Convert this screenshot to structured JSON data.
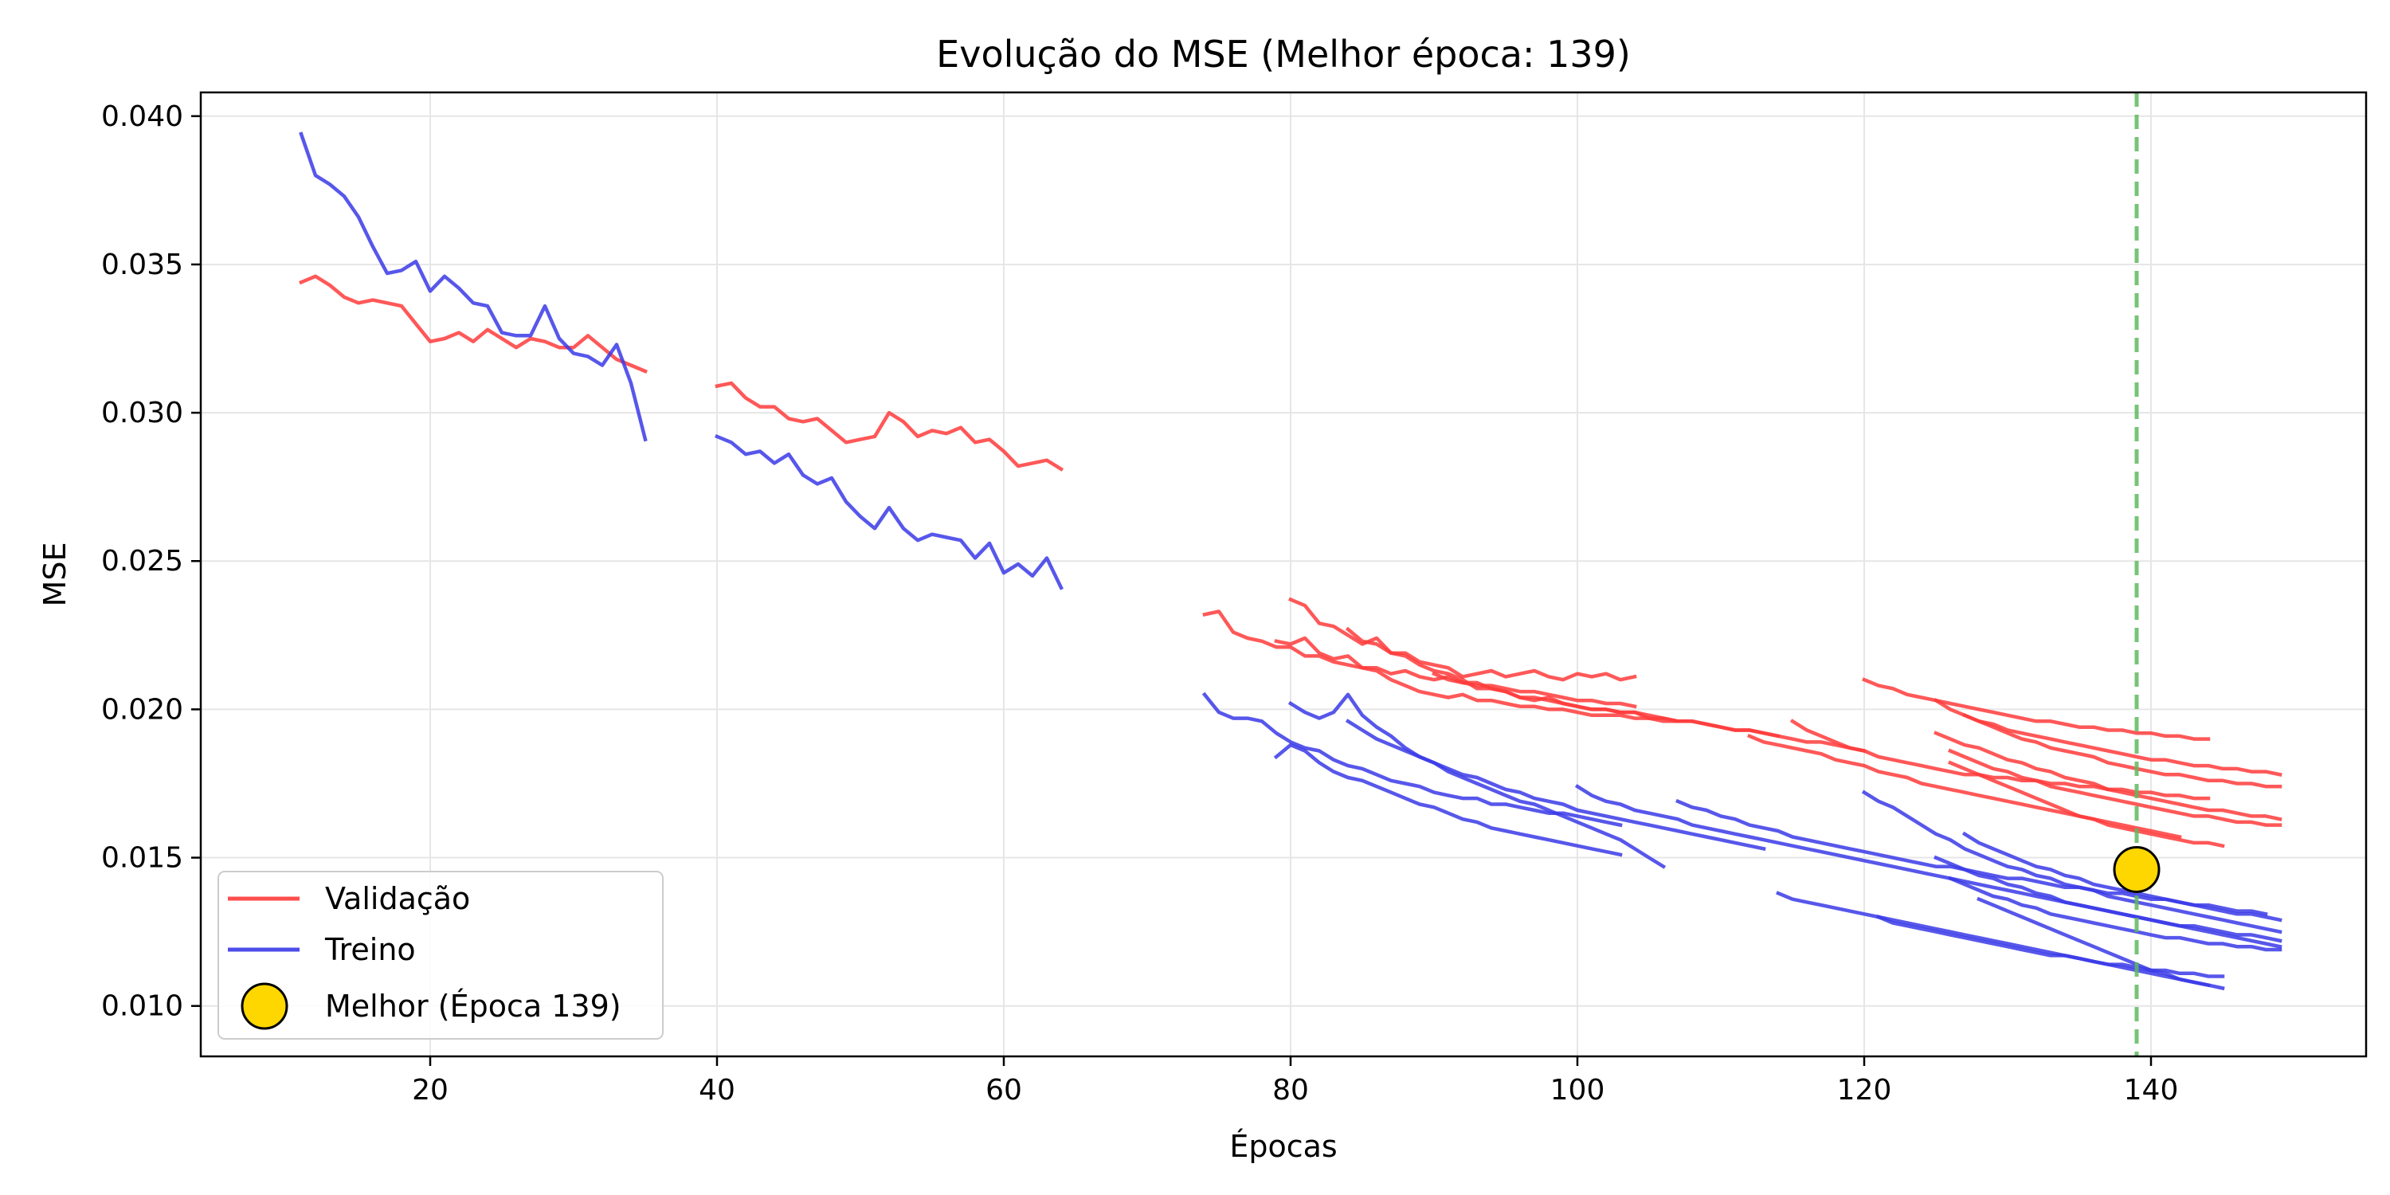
{
  "chart_data": {
    "type": "line",
    "title": "Evolução do MSE (Melhor época: 139)",
    "xlabel": "Épocas",
    "ylabel": "MSE",
    "xlim": [
      4,
      155
    ],
    "ylim": [
      0.0083,
      0.0408
    ],
    "xticks": [
      20,
      40,
      60,
      80,
      100,
      120,
      140
    ],
    "yticks": [
      0.01,
      0.015,
      0.02,
      0.025,
      0.03,
      0.035,
      0.04
    ],
    "ytick_labels": [
      "0.010",
      "0.015",
      "0.020",
      "0.025",
      "0.030",
      "0.035",
      "0.040"
    ],
    "grid": true,
    "legend_position": "lower-left",
    "legend": [
      "Validação",
      "Treino",
      "Melhor (Época 139)"
    ],
    "colors": {
      "validacao": "#ff3b3b",
      "treino": "#3a3ae8",
      "best_line": "#5fb85f",
      "best_marker": "#ffd700"
    },
    "best_epoch": 139,
    "best_value": 0.0146,
    "series": [
      {
        "group": "Validação",
        "segment": 1,
        "x_start": 11,
        "values": [
          0.0344,
          0.0346,
          0.0343,
          0.0339,
          0.0337,
          0.0338,
          0.0337,
          0.0336,
          0.033,
          0.0324,
          0.0325,
          0.0327,
          0.0324,
          0.0328,
          0.0325,
          0.0322,
          0.0325,
          0.0324,
          0.0322,
          0.0322,
          0.0326,
          0.0322,
          0.0318,
          0.0316,
          0.0314
        ]
      },
      {
        "group": "Treino",
        "segment": 1,
        "x_start": 11,
        "values": [
          0.0394,
          0.038,
          0.0377,
          0.0373,
          0.0366,
          0.0356,
          0.0347,
          0.0348,
          0.0351,
          0.0341,
          0.0346,
          0.0342,
          0.0337,
          0.0336,
          0.0327,
          0.0326,
          0.0326,
          0.0336,
          0.0325,
          0.032,
          0.0319,
          0.0316,
          0.0323,
          0.031,
          0.0291
        ]
      },
      {
        "group": "Validação",
        "segment": 2,
        "x_start": 40,
        "values": [
          0.0309,
          0.031,
          0.0305,
          0.0302,
          0.0302,
          0.0298,
          0.0297,
          0.0298,
          0.0294,
          0.029,
          0.0291,
          0.0292,
          0.03,
          0.0297,
          0.0292,
          0.0294,
          0.0293,
          0.0295,
          0.029,
          0.0291,
          0.0287,
          0.0282,
          0.0283,
          0.0284,
          0.0281
        ]
      },
      {
        "group": "Treino",
        "segment": 2,
        "x_start": 40,
        "values": [
          0.0292,
          0.029,
          0.0286,
          0.0287,
          0.0283,
          0.0286,
          0.0279,
          0.0276,
          0.0278,
          0.027,
          0.0265,
          0.0261,
          0.0268,
          0.0261,
          0.0257,
          0.0259,
          0.0258,
          0.0257,
          0.0251,
          0.0256,
          0.0246,
          0.0249,
          0.0245,
          0.0251,
          0.0241
        ]
      },
      {
        "group": "Validação",
        "segment": 3,
        "x_start": 74,
        "values": [
          0.0232,
          0.0233,
          0.0226,
          0.0224,
          0.0223,
          0.0221,
          0.0221,
          0.0218,
          0.0218,
          0.0216,
          0.0215,
          0.0214,
          0.0214,
          0.0212,
          0.0213,
          0.0211,
          0.021,
          0.0211,
          0.0209,
          0.0208,
          0.0208,
          0.0207,
          0.0206,
          0.0206,
          0.0205,
          0.0204,
          0.0203,
          0.0203,
          0.0202,
          0.0202,
          0.0201
        ]
      },
      {
        "group": "Validação",
        "segment": 4,
        "x_start": 79,
        "values": [
          0.0223,
          0.0222,
          0.0224,
          0.0219,
          0.0217,
          0.0218,
          0.0214,
          0.0213,
          0.021,
          0.0208,
          0.0206,
          0.0205,
          0.0204,
          0.0205,
          0.0203,
          0.0203,
          0.0202,
          0.0201,
          0.0201,
          0.02,
          0.02,
          0.0199,
          0.0198,
          0.0198,
          0.0198,
          0.0197,
          0.0197,
          0.0196,
          0.0196
        ]
      },
      {
        "group": "Validação",
        "segment": 5,
        "x_start": 80,
        "values": [
          0.0237,
          0.0235,
          0.0229,
          0.0228,
          0.0225,
          0.0222,
          0.0224,
          0.0219,
          0.0219,
          0.0216,
          0.0215,
          0.0214,
          0.0211,
          0.0212,
          0.0213,
          0.0211,
          0.0212,
          0.0213,
          0.0211,
          0.021,
          0.0212,
          0.0211,
          0.0212,
          0.021,
          0.0211
        ]
      },
      {
        "group": "Validação",
        "segment": 6,
        "x_start": 84,
        "values": [
          0.0227,
          0.0223,
          0.0222,
          0.0219,
          0.0218,
          0.0215,
          0.0213,
          0.0212,
          0.021,
          0.0207,
          0.0207,
          0.0206,
          0.0204,
          0.0203,
          0.0204,
          0.0202,
          0.0201,
          0.02,
          0.02,
          0.0199,
          0.0199,
          0.0197,
          0.0197,
          0.0196,
          0.0196,
          0.0195,
          0.0194,
          0.0193,
          0.0193,
          0.0192,
          0.0191
        ]
      },
      {
        "group": "Validação",
        "segment": 7,
        "x_start": 90,
        "values": [
          0.0212,
          0.021,
          0.0209,
          0.0209,
          0.0207,
          0.0206,
          0.0204,
          0.0204,
          0.0203,
          0.0202,
          0.0201,
          0.02,
          0.02,
          0.0199,
          0.0199,
          0.0198,
          0.0197,
          0.0196,
          0.0196,
          0.0195,
          0.0194,
          0.0193,
          0.0193,
          0.0192,
          0.0191,
          0.019,
          0.0189,
          0.0189,
          0.0188,
          0.0187,
          0.0186
        ]
      },
      {
        "group": "Validação",
        "segment": 8,
        "x_start": 112,
        "values": [
          0.0191,
          0.0189,
          0.0188,
          0.0187,
          0.0186,
          0.0185,
          0.0183,
          0.0182,
          0.0181,
          0.0179,
          0.0178,
          0.0177,
          0.0175,
          0.0174,
          0.0173,
          0.0172,
          0.0171,
          0.017,
          0.0169,
          0.0168,
          0.0167,
          0.0166,
          0.0165,
          0.0164,
          0.0163,
          0.0162,
          0.0161,
          0.016,
          0.0159,
          0.0158,
          0.0157
        ]
      },
      {
        "group": "Validação",
        "segment": 9,
        "x_start": 115,
        "values": [
          0.0196,
          0.0193,
          0.0191,
          0.0189,
          0.0187,
          0.0186,
          0.0184,
          0.0183,
          0.0182,
          0.0181,
          0.018,
          0.0179,
          0.0178,
          0.0178,
          0.0177,
          0.0177,
          0.0176,
          0.0176,
          0.0175,
          0.0175,
          0.0174,
          0.0174,
          0.0173,
          0.0173,
          0.0172,
          0.0172,
          0.0171,
          0.0171,
          0.017,
          0.017
        ]
      },
      {
        "group": "Validação",
        "segment": 10,
        "x_start": 120,
        "values": [
          0.021,
          0.0208,
          0.0207,
          0.0205,
          0.0204,
          0.0203,
          0.0202,
          0.0201,
          0.02,
          0.0199,
          0.0198,
          0.0197,
          0.0196,
          0.0196,
          0.0195,
          0.0194,
          0.0194,
          0.0193,
          0.0193,
          0.0192,
          0.0192,
          0.0191,
          0.0191,
          0.019,
          0.019
        ]
      },
      {
        "group": "Validação",
        "segment": 11,
        "x_start": 125,
        "values": [
          0.0203,
          0.02,
          0.0198,
          0.0196,
          0.0194,
          0.0192,
          0.019,
          0.0189,
          0.0187,
          0.0186,
          0.0185,
          0.0184,
          0.0182,
          0.0181,
          0.018,
          0.0179,
          0.0178,
          0.0178,
          0.0177,
          0.0176,
          0.0176,
          0.0175,
          0.0175,
          0.0174,
          0.0174
        ]
      },
      {
        "group": "Validação",
        "segment": 12,
        "x_start": 125,
        "values": [
          0.0192,
          0.019,
          0.0188,
          0.0187,
          0.0185,
          0.0183,
          0.0182,
          0.018,
          0.0179,
          0.0177,
          0.0176,
          0.0175,
          0.0173,
          0.0172,
          0.0171,
          0.017,
          0.0169,
          0.0168,
          0.0167,
          0.0166,
          0.0166,
          0.0165,
          0.0164,
          0.0164,
          0.0163
        ]
      },
      {
        "group": "Validação",
        "segment": 13,
        "x_start": 126,
        "values": [
          0.0186,
          0.0184,
          0.0182,
          0.018,
          0.0179,
          0.0177,
          0.0176,
          0.0174,
          0.0173,
          0.0172,
          0.0171,
          0.017,
          0.0169,
          0.0168,
          0.0167,
          0.0166,
          0.0165,
          0.0164,
          0.0164,
          0.0163,
          0.0162,
          0.0162,
          0.0161,
          0.0161
        ]
      },
      {
        "group": "Validação",
        "segment": 14,
        "x_start": 126,
        "values": [
          0.0182,
          0.018,
          0.0178,
          0.0176,
          0.0174,
          0.0172,
          0.017,
          0.0168,
          0.0166,
          0.0164,
          0.0163,
          0.0161,
          0.016,
          0.0159,
          0.0158,
          0.0157,
          0.0156,
          0.0155,
          0.0155,
          0.0154
        ]
      },
      {
        "group": "Validação",
        "segment": 15,
        "x_start": 127,
        "values": [
          0.0198,
          0.0196,
          0.0195,
          0.0193,
          0.0192,
          0.0191,
          0.019,
          0.0189,
          0.0188,
          0.0187,
          0.0186,
          0.0185,
          0.0184,
          0.0183,
          0.0183,
          0.0182,
          0.0181,
          0.0181,
          0.018,
          0.018,
          0.0179,
          0.0179,
          0.0178
        ]
      },
      {
        "group": "Treino",
        "segment": 3,
        "x_start": 74,
        "values": [
          0.0205,
          0.0199,
          0.0197,
          0.0197,
          0.0196,
          0.0192,
          0.0189,
          0.0187,
          0.0186,
          0.0183,
          0.0181,
          0.018,
          0.0178,
          0.0176,
          0.0175,
          0.0174,
          0.0172,
          0.0171,
          0.017,
          0.017,
          0.0168,
          0.0168,
          0.0167,
          0.0166,
          0.0165,
          0.0165,
          0.0164,
          0.0163,
          0.0162,
          0.0161
        ]
      },
      {
        "group": "Treino",
        "segment": 4,
        "x_start": 79,
        "values": [
          0.0184,
          0.0188,
          0.0186,
          0.0182,
          0.0179,
          0.0177,
          0.0176,
          0.0174,
          0.0172,
          0.017,
          0.0168,
          0.0167,
          0.0165,
          0.0163,
          0.0162,
          0.016,
          0.0159,
          0.0158,
          0.0157,
          0.0156,
          0.0155,
          0.0154,
          0.0153,
          0.0152,
          0.0151
        ]
      },
      {
        "group": "Treino",
        "segment": 5,
        "x_start": 80,
        "values": [
          0.0202,
          0.0199,
          0.0197,
          0.0199,
          0.0205,
          0.0198,
          0.0194,
          0.0191,
          0.0187,
          0.0184,
          0.0182,
          0.0179,
          0.0177,
          0.0175,
          0.0173,
          0.0171,
          0.0169,
          0.0168,
          0.0166,
          0.0164,
          0.0162,
          0.016,
          0.0158,
          0.0156,
          0.0153,
          0.015,
          0.0147
        ]
      },
      {
        "group": "Treino",
        "segment": 6,
        "x_start": 84,
        "values": [
          0.0196,
          0.0193,
          0.019,
          0.0188,
          0.0186,
          0.0184,
          0.0182,
          0.018,
          0.0178,
          0.0177,
          0.0175,
          0.0173,
          0.0172,
          0.017,
          0.0169,
          0.0168,
          0.0166,
          0.0165,
          0.0164,
          0.0163,
          0.0162,
          0.0161,
          0.016,
          0.0159,
          0.0158,
          0.0157,
          0.0156,
          0.0155,
          0.0154,
          0.0153
        ]
      },
      {
        "group": "Treino",
        "segment": 7,
        "x_start": 100,
        "values": [
          0.0174,
          0.0171,
          0.0169,
          0.0168,
          0.0166,
          0.0165,
          0.0164,
          0.0163,
          0.0161,
          0.016,
          0.0159,
          0.0158,
          0.0157,
          0.0156,
          0.0155,
          0.0154,
          0.0153,
          0.0152,
          0.0151,
          0.015,
          0.0149,
          0.0148,
          0.0147,
          0.0146,
          0.0145,
          0.0144,
          0.0143,
          0.0142,
          0.0141,
          0.014,
          0.0139,
          0.0138,
          0.0137,
          0.0136,
          0.0135,
          0.0134,
          0.0133,
          0.0132,
          0.0131,
          0.013,
          0.0129,
          0.0128,
          0.0127,
          0.0126,
          0.0125,
          0.0124,
          0.0123,
          0.0122,
          0.0121,
          0.012
        ]
      },
      {
        "group": "Treino",
        "segment": 8,
        "x_start": 107,
        "values": [
          0.0169,
          0.0167,
          0.0166,
          0.0164,
          0.0163,
          0.0161,
          0.016,
          0.0159,
          0.0157,
          0.0156,
          0.0155,
          0.0154,
          0.0153,
          0.0152,
          0.0151,
          0.015,
          0.0149,
          0.0148,
          0.0147,
          0.0147,
          0.0146,
          0.0145,
          0.0144,
          0.0143,
          0.0143,
          0.0142,
          0.0141,
          0.014,
          0.014,
          0.0139,
          0.0138,
          0.0138,
          0.0137,
          0.0136,
          0.0136,
          0.0135,
          0.0134,
          0.0134,
          0.0133,
          0.0132,
          0.0132,
          0.0131
        ]
      },
      {
        "group": "Treino",
        "segment": 9,
        "x_start": 114,
        "values": [
          0.0138,
          0.0136,
          0.0135,
          0.0134,
          0.0133,
          0.0132,
          0.0131,
          0.013,
          0.0129,
          0.0128,
          0.0127,
          0.0126,
          0.0125,
          0.0124,
          0.0123,
          0.0122,
          0.0121,
          0.012,
          0.0119,
          0.0118,
          0.0117,
          0.0116,
          0.0115,
          0.0114,
          0.0113,
          0.0112,
          0.0111,
          0.011,
          0.0109,
          0.0108,
          0.0107
        ]
      },
      {
        "group": "Treino",
        "segment": 10,
        "x_start": 120,
        "values": [
          0.0172,
          0.0169,
          0.0167,
          0.0164,
          0.0161,
          0.0158,
          0.0156,
          0.0153,
          0.0151,
          0.0149,
          0.0147,
          0.0146,
          0.0144,
          0.0143,
          0.0141,
          0.014,
          0.0139,
          0.0137,
          0.0136,
          0.0135,
          0.0134,
          0.0133,
          0.0132,
          0.0131,
          0.013,
          0.0129,
          0.0128,
          0.0127,
          0.0126,
          0.0125
        ]
      },
      {
        "group": "Treino",
        "segment": 11,
        "x_start": 121,
        "values": [
          0.013,
          0.0128,
          0.0127,
          0.0126,
          0.0125,
          0.0124,
          0.0123,
          0.0122,
          0.0121,
          0.012,
          0.0119,
          0.0118,
          0.0117,
          0.0117,
          0.0116,
          0.0115,
          0.0114,
          0.0114,
          0.0113,
          0.0112,
          0.0112,
          0.0111,
          0.0111,
          0.011,
          0.011
        ]
      },
      {
        "group": "Treino",
        "segment": 12,
        "x_start": 125,
        "values": [
          0.015,
          0.0148,
          0.0146,
          0.0144,
          0.0143,
          0.0141,
          0.014,
          0.0138,
          0.0137,
          0.0135,
          0.0134,
          0.0133,
          0.0132,
          0.0131,
          0.013,
          0.0129,
          0.0128,
          0.0127,
          0.0127,
          0.0126,
          0.0125,
          0.0124,
          0.0124,
          0.0123,
          0.0122
        ]
      },
      {
        "group": "Treino",
        "segment": 13,
        "x_start": 126,
        "values": [
          0.0143,
          0.0141,
          0.0139,
          0.0137,
          0.0136,
          0.0134,
          0.0133,
          0.0131,
          0.013,
          0.0129,
          0.0128,
          0.0127,
          0.0126,
          0.0125,
          0.0124,
          0.0123,
          0.0123,
          0.0122,
          0.0121,
          0.0121,
          0.012,
          0.012,
          0.0119,
          0.0119
        ]
      },
      {
        "group": "Treino",
        "segment": 14,
        "x_start": 127,
        "values": [
          0.0158,
          0.0155,
          0.0153,
          0.0151,
          0.0149,
          0.0147,
          0.0146,
          0.0144,
          0.0143,
          0.0141,
          0.014,
          0.0139,
          0.0138,
          0.0137,
          0.0136,
          0.0135,
          0.0134,
          0.0133,
          0.0132,
          0.0131,
          0.0131,
          0.013,
          0.0129
        ]
      },
      {
        "group": "Treino",
        "segment": 15,
        "x_start": 128,
        "values": [
          0.0136,
          0.0134,
          0.0132,
          0.013,
          0.0128,
          0.0126,
          0.0124,
          0.0122,
          0.012,
          0.0118,
          0.0116,
          0.0114,
          0.0112,
          0.0111,
          0.0109,
          0.0108,
          0.0107,
          0.0106
        ]
      }
    ]
  }
}
